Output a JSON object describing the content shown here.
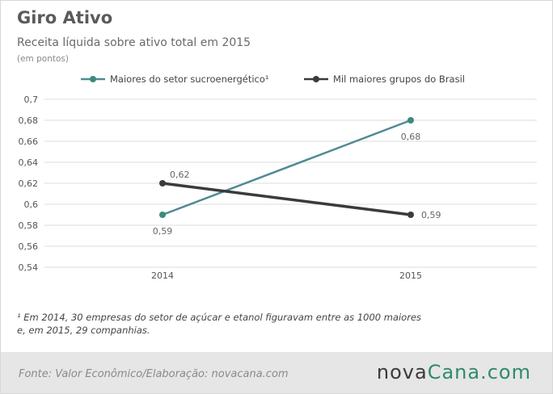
{
  "header": {
    "title": "Giro Ativo",
    "subtitle": "Receita líquida sobre ativo total em 2015",
    "unit": "(em pontos)"
  },
  "footnote": {
    "line1": "¹ Em 2014, 30 empresas  do setor de açúcar e etanol figuravam entre as 1000 maiores",
    "line2": "e, em 2015, 29 companhias."
  },
  "footer": {
    "source": "Fonte:  Valor  Econômico/Elaboração: novacana.com",
    "logo_part1": "nova",
    "logo_part2": "Cana.com"
  },
  "colors": {
    "series1": "#4f8a94",
    "series1_marker": "#3a8c7a",
    "series2": "#3b3b3b",
    "grid": "#dcdcdc",
    "tick_text": "#555555"
  },
  "chart_data": {
    "type": "line",
    "x": [
      "2014",
      "2015"
    ],
    "ylim": [
      0.54,
      0.7
    ],
    "yticks": [
      {
        "value": 0.54,
        "label": "0,54"
      },
      {
        "value": 0.56,
        "label": "0,56"
      },
      {
        "value": 0.58,
        "label": "0,58"
      },
      {
        "value": 0.6,
        "label": "0,6"
      },
      {
        "value": 0.62,
        "label": "0,62"
      },
      {
        "value": 0.64,
        "label": "0,64"
      },
      {
        "value": 0.66,
        "label": "0,66"
      },
      {
        "value": 0.68,
        "label": "0,68"
      },
      {
        "value": 0.7,
        "label": "0,7"
      }
    ],
    "grid": true,
    "legend_position": "top",
    "series": [
      {
        "name": "Maiores do setor sucroenergético¹",
        "values": [
          0.59,
          0.68
        ],
        "labels": [
          "0,59",
          "0,68"
        ],
        "label_side": "below"
      },
      {
        "name": "Mil maiores grupos do Brasil",
        "values": [
          0.62,
          0.59
        ],
        "labels": [
          "0,62",
          "0,59"
        ],
        "label_side": "above-right"
      }
    ]
  }
}
